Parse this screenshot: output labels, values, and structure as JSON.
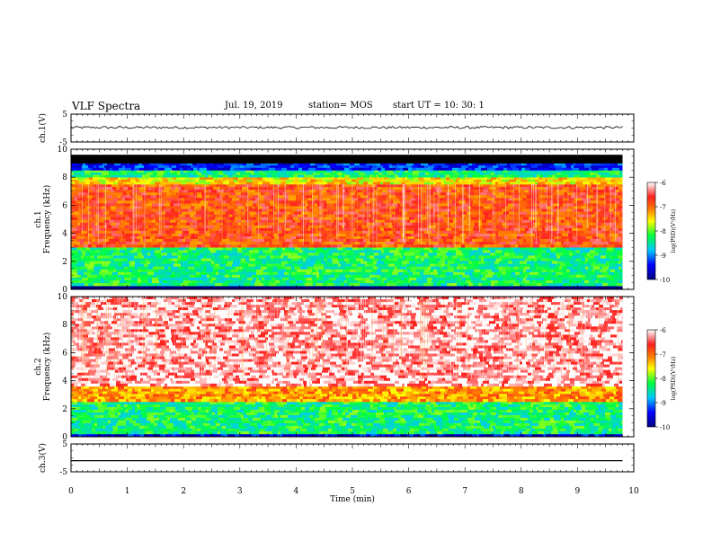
{
  "header": {
    "title": "VLF Spectra",
    "date": "Jul. 19, 2019",
    "station": "station= MOS",
    "start": "start UT =   10: 30: 1"
  },
  "colors": {
    "background": "#ffffff",
    "axis": "#000000",
    "spectrogram_scale": [
      "#000080",
      "#0000ff",
      "#00c8ff",
      "#00ff40",
      "#ffff00",
      "#ff8000",
      "#ff2020",
      "#ffffff"
    ]
  },
  "chart_data": [
    {
      "type": "line",
      "panel": "ch1 waveform",
      "ylabel": "ch.1(V)",
      "ytick_labels": [
        "5",
        "-5"
      ],
      "ylim": [
        -5,
        5
      ],
      "xlim": [
        0,
        10
      ],
      "series": [
        {
          "values_description_level": 0.2,
          "x_range": [
            0,
            9.8
          ]
        }
      ]
    },
    {
      "type": "heatmap",
      "panel": "ch1 spectrogram",
      "ylabel": "ch.1\nFrequency (kHz)",
      "ylabel_lines": [
        "ch.1",
        "Frequency (kHz)"
      ],
      "ytick_labels": [
        "0",
        "2",
        "4",
        "6",
        "8",
        "10"
      ],
      "ylim": [
        0,
        10
      ],
      "xlim": [
        0,
        10
      ],
      "x_range": [
        0,
        9.8
      ],
      "bands": [
        {
          "from_khz": 0.0,
          "to_khz": 0.25,
          "level": -10
        },
        {
          "from_khz": 0.25,
          "to_khz": 3.0,
          "level": -8.3
        },
        {
          "from_khz": 3.0,
          "to_khz": 7.5,
          "level": -6.8
        },
        {
          "from_khz": 7.5,
          "to_khz": 8.0,
          "level": -7.5
        },
        {
          "from_khz": 8.0,
          "to_khz": 8.5,
          "level": -8.3
        },
        {
          "from_khz": 8.5,
          "to_khz": 9.0,
          "level": -9.3
        },
        {
          "from_khz": 9.0,
          "to_khz": 9.6,
          "level": -10
        }
      ],
      "colorbar": {
        "label": "log(PSD)(V²/Hz)",
        "tick_labels": [
          "-6",
          "-7",
          "-8",
          "-9",
          "-10"
        ],
        "range": [
          -10,
          -6
        ]
      }
    },
    {
      "type": "heatmap",
      "panel": "ch2 spectrogram",
      "ylabel": "ch.2\nFrequency (kHz)",
      "ylabel_lines": [
        "ch.2",
        "Frequency (kHz)"
      ],
      "ytick_labels": [
        "0",
        "2",
        "4",
        "6",
        "8",
        "10"
      ],
      "ylim": [
        0,
        10
      ],
      "xlim": [
        0,
        10
      ],
      "x_range": [
        0,
        9.8
      ],
      "bands": [
        {
          "from_khz": 0.0,
          "to_khz": 0.2,
          "level": -9.5
        },
        {
          "from_khz": 0.2,
          "to_khz": 2.5,
          "level": -8.3
        },
        {
          "from_khz": 2.5,
          "to_khz": 3.6,
          "level": -7.2
        },
        {
          "from_khz": 3.6,
          "to_khz": 10.0,
          "level": -6.2
        }
      ],
      "colorbar": {
        "label": "log(PSD)(V²/Hz)",
        "tick_labels": [
          "-6",
          "-7",
          "-8",
          "-9",
          "-10"
        ],
        "range": [
          -10,
          -6
        ]
      }
    },
    {
      "type": "line",
      "panel": "ch3 waveform",
      "ylabel": "ch.3(V)",
      "ytick_labels": [
        "5",
        "-5"
      ],
      "ylim": [
        -5,
        5
      ],
      "xlim": [
        0,
        10
      ],
      "xlabel": "Time (min)",
      "xtick_labels": [
        "0",
        "1",
        "2",
        "3",
        "4",
        "5",
        "6",
        "7",
        "8",
        "9",
        "10"
      ],
      "series": [
        {
          "values_description_level": -1.0,
          "x_range": [
            0,
            9.8
          ]
        }
      ]
    }
  ]
}
